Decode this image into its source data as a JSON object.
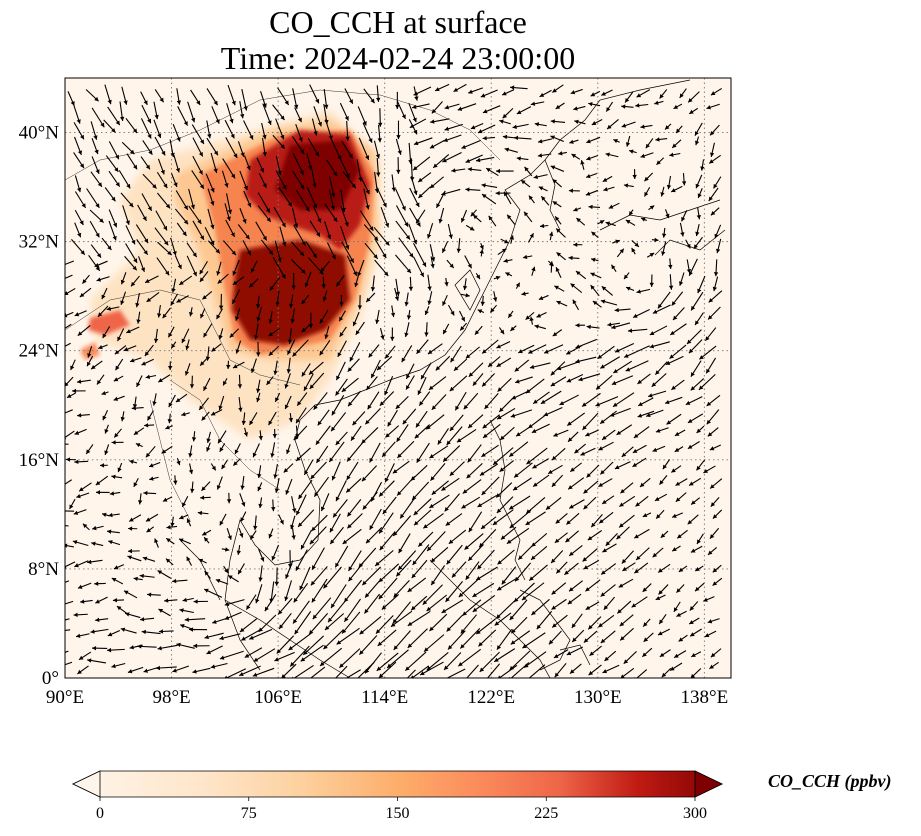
{
  "title": {
    "line1": "CO_CCH at surface",
    "line2": "Time: 2024-02-24 23:00:00"
  },
  "map": {
    "projection": "PlateCarree",
    "lon_range": [
      90,
      140
    ],
    "lat_range": [
      0,
      44
    ],
    "x_ticks": [
      {
        "value": 90,
        "label": "90°E"
      },
      {
        "value": 98,
        "label": "98°E"
      },
      {
        "value": 106,
        "label": "106°E"
      },
      {
        "value": 114,
        "label": "114°E"
      },
      {
        "value": 122,
        "label": "122°E"
      },
      {
        "value": 130,
        "label": "130°E"
      },
      {
        "value": 138,
        "label": "138°E"
      }
    ],
    "y_ticks": [
      {
        "value": 0,
        "label": "0°"
      },
      {
        "value": 8,
        "label": "8°N"
      },
      {
        "value": 16,
        "label": "16°N"
      },
      {
        "value": 24,
        "label": "24°N"
      },
      {
        "value": 32,
        "label": "32°N"
      },
      {
        "value": 40,
        "label": "40°N"
      }
    ],
    "gridlines": "dotted",
    "background_color": "#fff5eb",
    "coastline_color": "#000000",
    "wind_vectors": "black quiver arrows"
  },
  "colorbar": {
    "label": "CO_CCH (ppbv)",
    "min": 0,
    "max": 300,
    "colormap": "OrRd-like",
    "extend": "both",
    "ticks": [
      {
        "value": 0,
        "label": "0"
      },
      {
        "value": 75,
        "label": "75"
      },
      {
        "value": 150,
        "label": "150"
      },
      {
        "value": 225,
        "label": "225"
      },
      {
        "value": 300,
        "label": "300"
      }
    ]
  }
}
